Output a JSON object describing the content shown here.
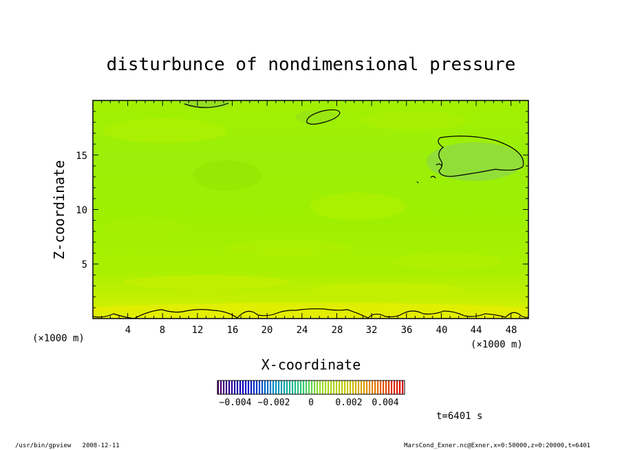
{
  "chart_data": {
    "type": "heatmap",
    "title": "disturbunce of nondimensional pressure",
    "xlabel": "X-coordinate",
    "ylabel": "Z-coordinate",
    "x_unit": "(×1000 m)",
    "x_unit_right": "(×1000 m)",
    "x_ticks": [
      "4",
      "8",
      "12",
      "16",
      "20",
      "24",
      "28",
      "32",
      "36",
      "40",
      "44",
      "48"
    ],
    "y_ticks": [
      "5",
      "10",
      "15"
    ],
    "xlim": [
      0,
      50
    ],
    "ylim": [
      0,
      20
    ],
    "colorbar": {
      "range": [
        -0.005,
        0.005
      ],
      "tick_labels": [
        "−0.004",
        "−0.002",
        "0",
        "0.002",
        "0.004"
      ],
      "tick_values": [
        -0.004,
        -0.002,
        0,
        0.002,
        0.004
      ]
    },
    "field": {
      "dominant_value_approx": 0.0012,
      "near_surface_value_approx": 0.002,
      "description_colors": {
        "low": "#8ec63a",
        "mid": "#9ff000",
        "high": "#e2f000"
      }
    },
    "grid": false,
    "time_label": "t=6401 s"
  },
  "footer": {
    "left": "/usr/bin/gpview   2008-12-11",
    "right": "MarsCond_Exner.nc@Exner,x=0:50000,z=0:20000,t=6401"
  }
}
